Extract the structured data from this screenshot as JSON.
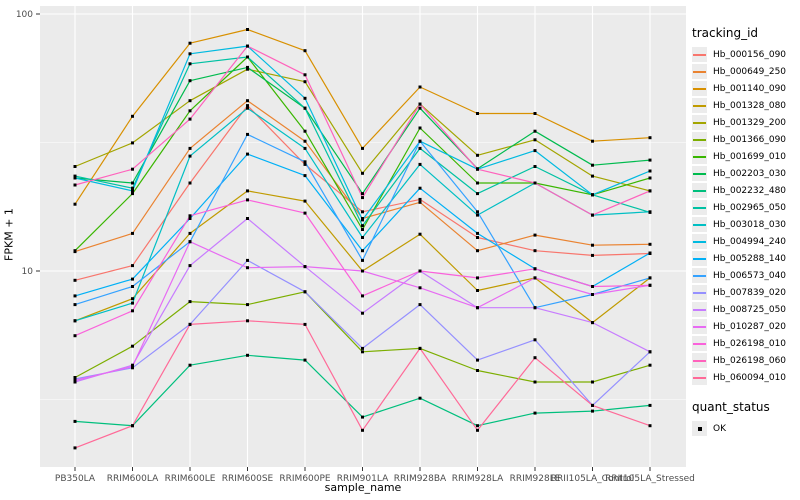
{
  "figure": {
    "y_axis_title": "FPKM + 1",
    "x_axis_title": "sample_name",
    "legend_tracking_title": "tracking_id",
    "legend_quant_title": "quant_status",
    "quant_ok_label": "OK",
    "colors": {
      "panel_bg": "#EBEBEB",
      "grid_major": "#FFFFFF",
      "grid_minor": "#F5F5F5",
      "tick_label": "#4D4D4D",
      "tick_mark": "#333333",
      "point": "#000000"
    }
  },
  "chart_data": {
    "type": "line",
    "title": "",
    "xlabel": "sample_name",
    "ylabel": "FPKM + 1",
    "y_scale": "log10",
    "ylim": [
      1.7,
      107
    ],
    "y_major_ticks": [
      {
        "label": "100",
        "value": 100
      },
      {
        "label": "10",
        "value": 10
      }
    ],
    "y_minor_ticks": [
      31.62,
      3.162
    ],
    "grid": true,
    "legend_position": "right",
    "point_shape": "square",
    "point_color": "#000000",
    "categories": [
      "PB350LA",
      "RRIM600LA",
      "RRIM600LE",
      "RRIM600SE",
      "RRIM600PE",
      "RRIM901LA",
      "RRIM928BA",
      "RRIM928LA",
      "RRIM928LE",
      "RRII105LA_Control",
      "RRII105LA_Stressed"
    ],
    "quant_status": [
      {
        "label": "OK",
        "shape": "square",
        "color": "#000000"
      }
    ],
    "series": [
      {
        "name": "Hb_000156_090",
        "color": "#F8766D",
        "values": [
          9.2,
          10.5,
          22,
          44,
          26,
          17,
          19,
          13.5,
          12,
          11.5,
          11.7
        ]
      },
      {
        "name": "Hb_000649_250",
        "color": "#EA8331",
        "values": [
          11.9,
          14,
          30,
          46,
          32,
          16,
          18.5,
          12,
          13.8,
          12.6,
          12.7
        ]
      },
      {
        "name": "Hb_001140_090",
        "color": "#D89000",
        "values": [
          18.2,
          40,
          77,
          87,
          72,
          30,
          52,
          41,
          41,
          32,
          33
        ]
      },
      {
        "name": "Hb_001328_080",
        "color": "#C09B00",
        "values": [
          6.4,
          7.8,
          14,
          20.5,
          18.7,
          10,
          13.9,
          8.4,
          9.4,
          6.3,
          9.4
        ]
      },
      {
        "name": "Hb_001329_200",
        "color": "#A3A500",
        "values": [
          25.5,
          31.5,
          46,
          61,
          54.5,
          24,
          44.6,
          28.2,
          32.4,
          23.4,
          20.5
        ]
      },
      {
        "name": "Hb_001366_090",
        "color": "#7CAE00",
        "values": [
          3.85,
          5.1,
          7.6,
          7.4,
          8.3,
          4.85,
          5.0,
          4.1,
          3.7,
          3.7,
          4.3
        ]
      },
      {
        "name": "Hb_001699_010",
        "color": "#39B600",
        "values": [
          12,
          20,
          42,
          68,
          35,
          14.5,
          36,
          22,
          22,
          19.8,
          23
        ]
      },
      {
        "name": "Hb_002203_030",
        "color": "#00BB4E",
        "values": [
          23,
          22,
          55,
          62,
          43,
          20,
          43,
          25,
          35,
          25.8,
          27
        ]
      },
      {
        "name": "Hb_002232_480",
        "color": "#00BF7D",
        "values": [
          2.6,
          2.5,
          4.3,
          4.7,
          4.5,
          2.7,
          3.2,
          2.5,
          2.8,
          2.85,
          3.0
        ]
      },
      {
        "name": "Hb_002965_050",
        "color": "#00C1A3",
        "values": [
          23.4,
          21,
          64,
          68,
          43,
          15,
          30,
          20,
          25.5,
          19.8,
          16.9
        ]
      },
      {
        "name": "Hb_003018_030",
        "color": "#00BFC4",
        "values": [
          6.4,
          7.5,
          28,
          43,
          30,
          13.5,
          26,
          16.5,
          22,
          16.5,
          17
        ]
      },
      {
        "name": "Hb_004994_240",
        "color": "#00BAE0",
        "values": [
          23,
          20.5,
          70,
          75,
          47,
          15.8,
          32,
          24.9,
          29.4,
          19.8,
          24.5
        ]
      },
      {
        "name": "Hb_005288_140",
        "color": "#00B0F6",
        "values": [
          8.0,
          9.3,
          16,
          28.5,
          23.5,
          12,
          21,
          14,
          10.2,
          8.7,
          11.75
        ]
      },
      {
        "name": "Hb_006573_040",
        "color": "#35A2FF",
        "values": [
          7.4,
          8.7,
          13,
          34,
          26.6,
          11,
          32,
          17,
          7.2,
          8.1,
          9.4
        ]
      },
      {
        "name": "Hb_007839_020",
        "color": "#9590FF",
        "values": [
          3.8,
          4.2,
          6.2,
          11,
          8.3,
          5.0,
          7.4,
          4.5,
          5.4,
          3.0,
          4.85
        ]
      },
      {
        "name": "Hb_008725_050",
        "color": "#C77CFF",
        "values": [
          3.7,
          4.3,
          10.5,
          16,
          10.4,
          6.85,
          10,
          7.2,
          7.2,
          6.3,
          4.85
        ]
      },
      {
        "name": "Hb_010287_020",
        "color": "#E76BF3",
        "values": [
          3.75,
          4.25,
          13,
          10.3,
          10.4,
          10.0,
          8.6,
          7.2,
          9.4,
          8.1,
          8.8
        ]
      },
      {
        "name": "Hb_026198_010",
        "color": "#FA62DB",
        "values": [
          5.6,
          7.0,
          16.4,
          18.9,
          16.8,
          8.0,
          10.0,
          9.4,
          10.2,
          8.7,
          8.8
        ]
      },
      {
        "name": "Hb_026198_060",
        "color": "#FF62BC",
        "values": [
          21.6,
          24.9,
          39,
          75,
          58,
          19.3,
          44.6,
          24.9,
          22,
          16.5,
          20.5
        ]
      },
      {
        "name": "Hb_060094_010",
        "color": "#FF6A98",
        "values": [
          2.05,
          2.5,
          6.2,
          6.4,
          6.2,
          2.4,
          5.0,
          2.4,
          4.6,
          3.0,
          2.5
        ]
      }
    ]
  }
}
